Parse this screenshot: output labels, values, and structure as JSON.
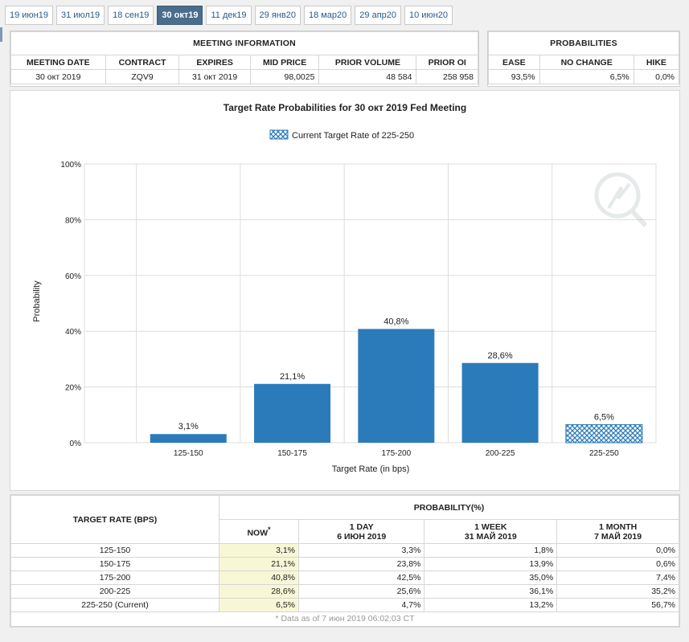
{
  "tabs": [
    "19 июн19",
    "31 июл19",
    "18 сен19",
    "30 окт19",
    "11 дек19",
    "29 янв20",
    "18 мар20",
    "29 апр20",
    "10 июн20"
  ],
  "active_tab_index": 3,
  "meeting_info": {
    "title": "MEETING INFORMATION",
    "headers": [
      "MEETING DATE",
      "CONTRACT",
      "EXPIRES",
      "MID PRICE",
      "PRIOR VOLUME",
      "PRIOR OI"
    ],
    "values": [
      "30 окт 2019",
      "ZQV9",
      "31 окт 2019",
      "98,0025",
      "48 584",
      "258 958"
    ]
  },
  "probabilities": {
    "title": "PROBABILITIES",
    "headers": [
      "EASE",
      "NO CHANGE",
      "HIKE"
    ],
    "values": [
      "93,5%",
      "6,5%",
      "0,0%"
    ]
  },
  "chart_data": {
    "type": "bar",
    "title": "Target Rate Probabilities for 30 окт 2019 Fed Meeting",
    "legend": "Current Target Rate of 225-250",
    "legend_placement": "top-center",
    "xlabel": "Target Rate (in bps)",
    "ylabel": "Probability",
    "ylim": [
      0,
      100
    ],
    "y_ticks": [
      "0%",
      "20%",
      "40%",
      "60%",
      "80%",
      "100%"
    ],
    "y_tick_values": [
      0,
      20,
      40,
      60,
      80,
      100
    ],
    "categories": [
      "125-150",
      "150-175",
      "175-200",
      "200-225",
      "225-250"
    ],
    "values": [
      3.1,
      21.1,
      40.8,
      28.6,
      6.5
    ],
    "data_labels": [
      "3,1%",
      "21,1%",
      "40,8%",
      "28,6%",
      "6,5%"
    ],
    "current_index": 4,
    "grid": true,
    "colors": {
      "bar": "#2b7bba",
      "hatch_bg": "#ffffff"
    }
  },
  "bottom_table": {
    "title_left": "TARGET RATE (BPS)",
    "title_right": "PROBABILITY(%)",
    "col_headers": [
      {
        "line1": "NOW",
        "line2": ""
      },
      {
        "line1": "1 DAY",
        "line2": "6 ИЮН 2019"
      },
      {
        "line1": "1 WEEK",
        "line2": "31 МАЙ 2019"
      },
      {
        "line1": "1 MONTH",
        "line2": "7 МАЙ 2019"
      }
    ],
    "now_mark": "*",
    "rows": [
      {
        "rate": "125-150",
        "now": "3,1%",
        "day": "3,3%",
        "week": "1,8%",
        "month": "0,0%"
      },
      {
        "rate": "150-175",
        "now": "21,1%",
        "day": "23,8%",
        "week": "13,9%",
        "month": "0,6%"
      },
      {
        "rate": "175-200",
        "now": "40,8%",
        "day": "42,5%",
        "week": "35,0%",
        "month": "7,4%"
      },
      {
        "rate": "200-225",
        "now": "28,6%",
        "day": "25,6%",
        "week": "36,1%",
        "month": "35,2%"
      },
      {
        "rate": "225-250 (Current)",
        "now": "6,5%",
        "day": "4,7%",
        "week": "13,2%",
        "month": "56,7%"
      }
    ],
    "footnote": "* Data as of 7 июн 2019 06:02:03 CT"
  }
}
